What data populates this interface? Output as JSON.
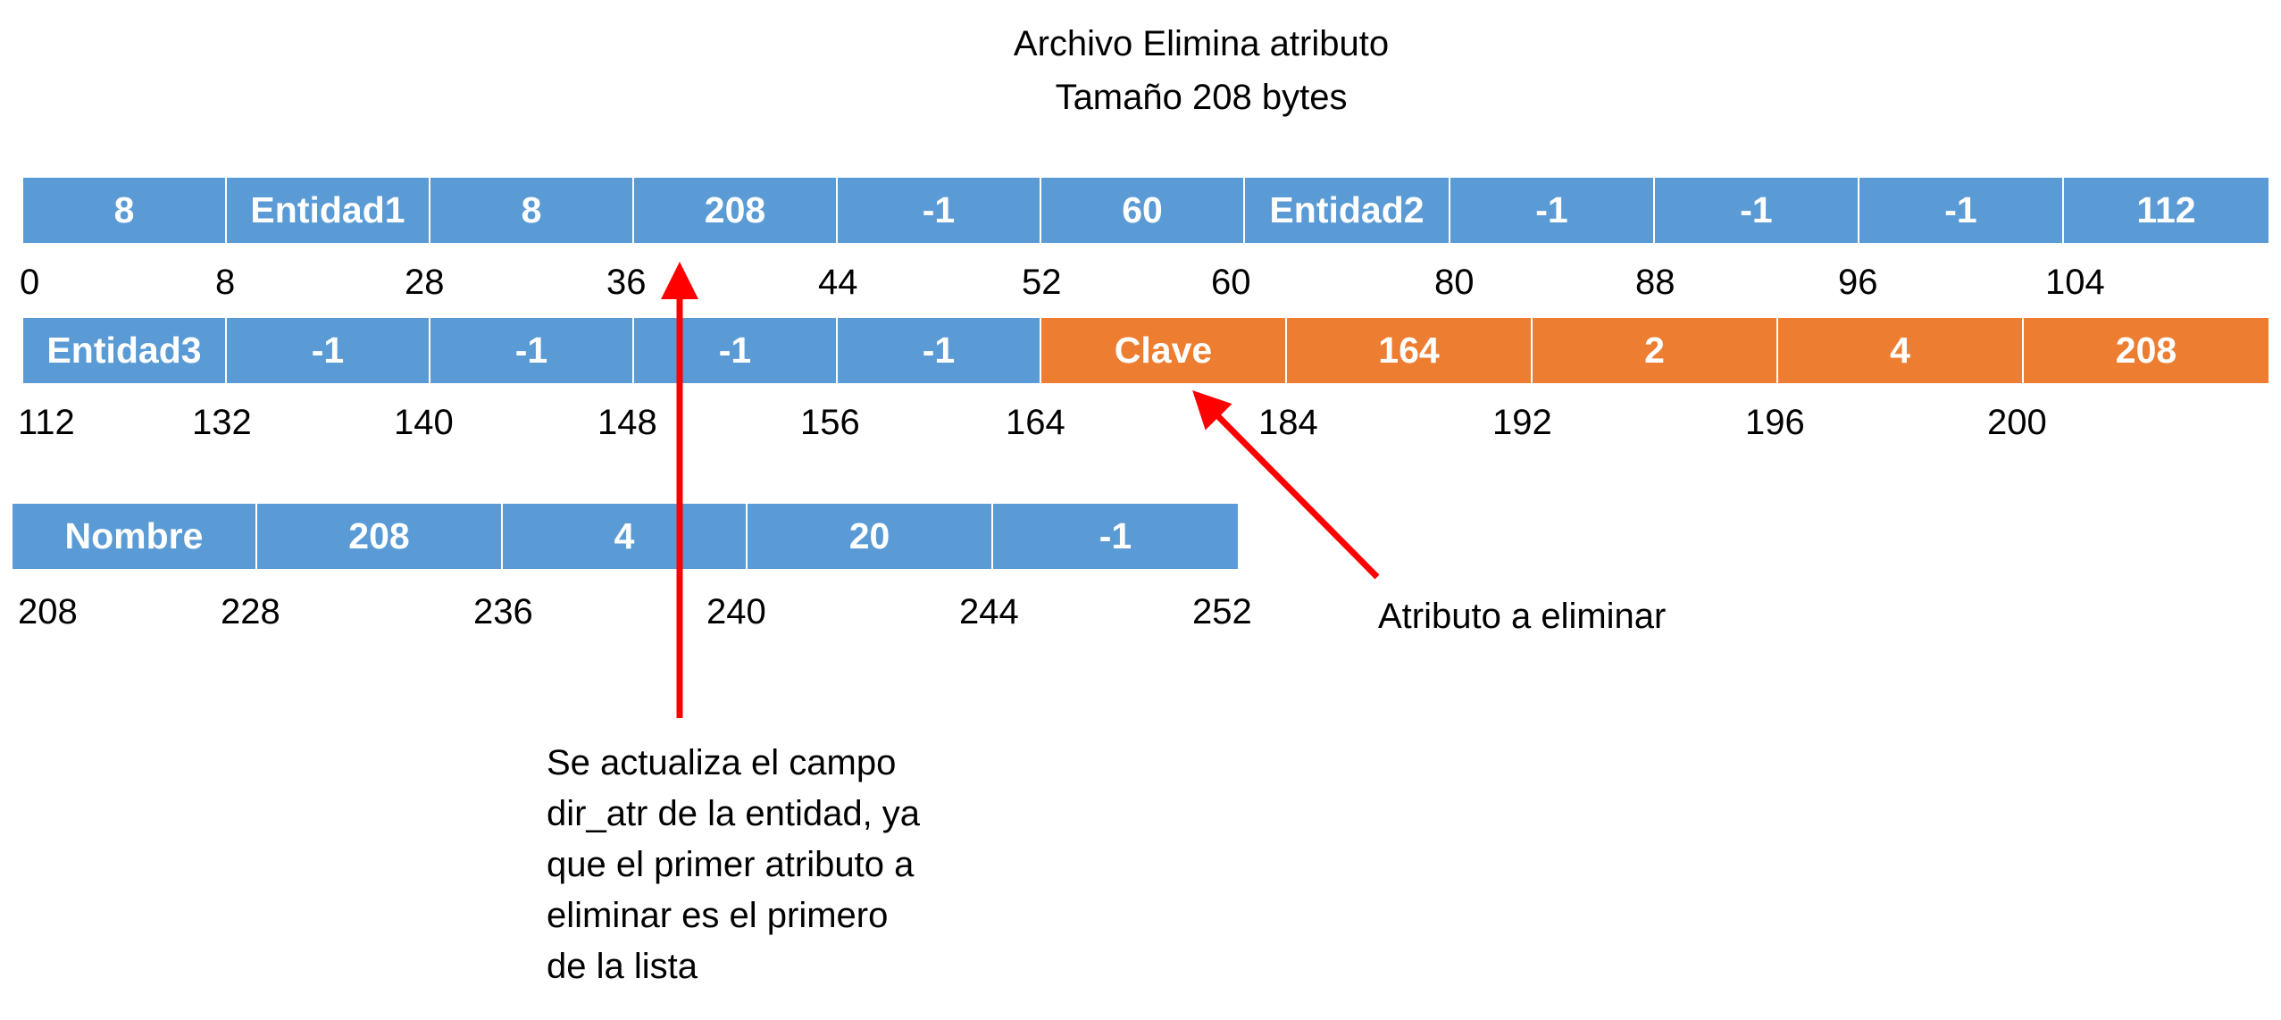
{
  "title": {
    "line1": "Archivo Elimina atributo",
    "line2": "Tamaño 208 bytes"
  },
  "row1": {
    "cells": [
      "8",
      "Entidad1",
      "8",
      "208",
      "-1",
      "60",
      "Entidad2",
      "-1",
      "-1",
      "-1",
      "112"
    ],
    "offsets": [
      "0",
      "8",
      "28",
      "36",
      "44",
      "52",
      "60",
      "80",
      "88",
      "96",
      "104"
    ]
  },
  "row2": {
    "cells": [
      "Entidad3",
      "-1",
      "-1",
      "-1",
      "-1",
      "Clave",
      "164",
      "2",
      "4",
      "208"
    ],
    "offsets": [
      "112",
      "132",
      "140",
      "148",
      "156",
      "164",
      "184",
      "192",
      "196",
      "200"
    ]
  },
  "row3": {
    "cells": [
      "Nombre",
      "208",
      "4",
      "20",
      "-1"
    ],
    "offsets": [
      "208",
      "228",
      "236",
      "240",
      "244",
      "252"
    ]
  },
  "annotations": {
    "delete_label": "Atributo a eliminar",
    "update_note": [
      "Se actualiza el campo",
      "dir_atr de la entidad, ya",
      "que el primer atributo a",
      "eliminar es el primero",
      "de la lista"
    ]
  },
  "colors": {
    "entity_fill": "#5b9bd5",
    "deleted_attribute_fill": "#ed7d31",
    "arrow": "#ff0000"
  }
}
